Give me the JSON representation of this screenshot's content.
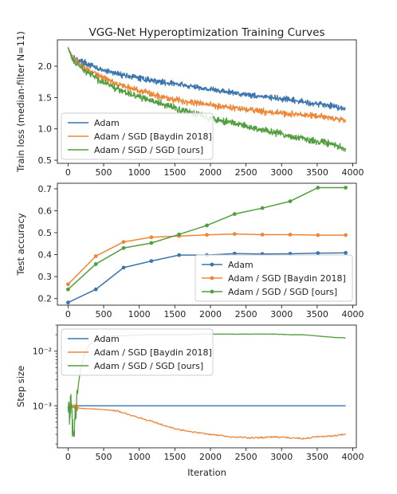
{
  "colors": {
    "adam": "#3b75af",
    "baydin": "#ef8636",
    "ours": "#519e3e"
  },
  "chart_data": [
    {
      "type": "line",
      "title": "VGG-Net Hyperoptimization Training Curves",
      "ylabel": "Train loss (median-filter N=11)",
      "xlim": [
        -150,
        4050
      ],
      "ylim": [
        0.45,
        2.42
      ],
      "xticks": [
        "0",
        "500",
        "1000",
        "1500",
        "2000",
        "2500",
        "3000",
        "3500",
        "4000"
      ],
      "yticks": [
        "0.5",
        "1.0",
        "1.5",
        "2.0"
      ],
      "legend": "lower-left",
      "x": [
        0,
        50,
        100,
        200,
        300,
        400,
        500,
        700,
        900,
        1100,
        1300,
        1500,
        1700,
        1900,
        2100,
        2300,
        2500,
        2700,
        2900,
        3100,
        3300,
        3500,
        3700,
        3900
      ],
      "series": [
        {
          "name": "Adam",
          "values": [
            2.3,
            2.18,
            2.12,
            2.07,
            2.02,
            1.97,
            1.93,
            1.88,
            1.83,
            1.79,
            1.75,
            1.72,
            1.68,
            1.65,
            1.61,
            1.58,
            1.55,
            1.52,
            1.49,
            1.46,
            1.43,
            1.4,
            1.37,
            1.32
          ]
        },
        {
          "name": "Adam / SGD [Baydin 2018]",
          "values": [
            2.3,
            2.15,
            2.08,
            2.01,
            1.93,
            1.87,
            1.81,
            1.72,
            1.64,
            1.58,
            1.52,
            1.47,
            1.43,
            1.4,
            1.37,
            1.34,
            1.31,
            1.28,
            1.26,
            1.24,
            1.22,
            1.2,
            1.18,
            1.13
          ]
        },
        {
          "name": "Adam / SGD / SGD [ours]",
          "values": [
            2.3,
            2.13,
            2.05,
            1.96,
            1.88,
            1.81,
            1.74,
            1.64,
            1.55,
            1.47,
            1.4,
            1.33,
            1.27,
            1.21,
            1.15,
            1.1,
            1.04,
            0.99,
            0.94,
            0.89,
            0.84,
            0.8,
            0.77,
            0.66
          ]
        }
      ]
    },
    {
      "type": "line",
      "ylabel": "Test accuracy",
      "xlim": [
        -150,
        4050
      ],
      "ylim": [
        0.17,
        0.725
      ],
      "xticks": [
        "0",
        "500",
        "1000",
        "1500",
        "2000",
        "2500",
        "3000",
        "3500",
        "4000"
      ],
      "yticks": [
        "0.2",
        "0.3",
        "0.4",
        "0.5",
        "0.6",
        "0.7"
      ],
      "legend": "lower-right",
      "x": [
        0,
        390,
        780,
        1170,
        1560,
        1950,
        2340,
        2730,
        3120,
        3510,
        3900
      ],
      "series": [
        {
          "name": "Adam",
          "values": [
            0.182,
            0.242,
            0.341,
            0.371,
            0.398,
            0.398,
            0.405,
            0.403,
            0.404,
            0.407,
            0.408
          ]
        },
        {
          "name": "Adam / SGD [Baydin 2018]",
          "values": [
            0.265,
            0.393,
            0.458,
            0.479,
            0.485,
            0.49,
            0.494,
            0.491,
            0.491,
            0.489,
            0.489
          ]
        },
        {
          "name": "Adam / SGD / SGD [ours]",
          "values": [
            0.242,
            0.357,
            0.43,
            0.453,
            0.492,
            0.533,
            0.585,
            0.612,
            0.643,
            0.705,
            0.705
          ]
        }
      ]
    },
    {
      "type": "line",
      "ylabel": "Step size",
      "xlabel": "Iteration",
      "xlim": [
        -150,
        4050
      ],
      "ylim": [
        0.00017,
        0.03
      ],
      "log_y": true,
      "xticks": [
        "0",
        "500",
        "1000",
        "1500",
        "2000",
        "2500",
        "3000",
        "3500",
        "4000"
      ],
      "yticks": [
        "10⁻³",
        "10⁻²"
      ],
      "legend": "upper-left",
      "x": [
        0,
        20,
        40,
        60,
        80,
        100,
        130,
        170,
        220,
        300,
        400,
        500,
        700,
        900,
        1100,
        1300,
        1500,
        1700,
        1900,
        2100,
        2300,
        2500,
        2700,
        2900,
        3100,
        3300,
        3500,
        3700,
        3900
      ],
      "series": [
        {
          "name": "Adam",
          "values": [
            0.001,
            0.001,
            0.001,
            0.001,
            0.001,
            0.001,
            0.001,
            0.001,
            0.001,
            0.001,
            0.001,
            0.001,
            0.001,
            0.001,
            0.001,
            0.001,
            0.001,
            0.001,
            0.001,
            0.001,
            0.001,
            0.001,
            0.001,
            0.001,
            0.001,
            0.001,
            0.001,
            0.001,
            0.001
          ]
        },
        {
          "name": "Adam / SGD [Baydin 2018]",
          "values": [
            0.001,
            0.00095,
            0.00105,
            0.00092,
            0.001,
            0.00095,
            0.00092,
            0.0009,
            0.00089,
            0.00088,
            0.00087,
            0.00085,
            0.0008,
            0.00066,
            0.00055,
            0.00046,
            0.00038,
            0.00034,
            0.00031,
            0.00029,
            0.00027,
            0.00026,
            0.00026,
            0.00027,
            0.00026,
            0.00025,
            0.00027,
            0.00028,
            0.0003
          ]
        },
        {
          "name": "Adam / SGD / SGD [ours]",
          "values": [
            0.001,
            0.0008,
            0.0012,
            0.0005,
            0.00035,
            0.0007,
            0.0015,
            0.004,
            0.008,
            0.013,
            0.016,
            0.018,
            0.019,
            0.0195,
            0.02,
            0.02,
            0.02,
            0.02,
            0.0205,
            0.0205,
            0.0205,
            0.0205,
            0.0205,
            0.0205,
            0.02,
            0.02,
            0.019,
            0.018,
            0.0175
          ]
        }
      ]
    }
  ]
}
